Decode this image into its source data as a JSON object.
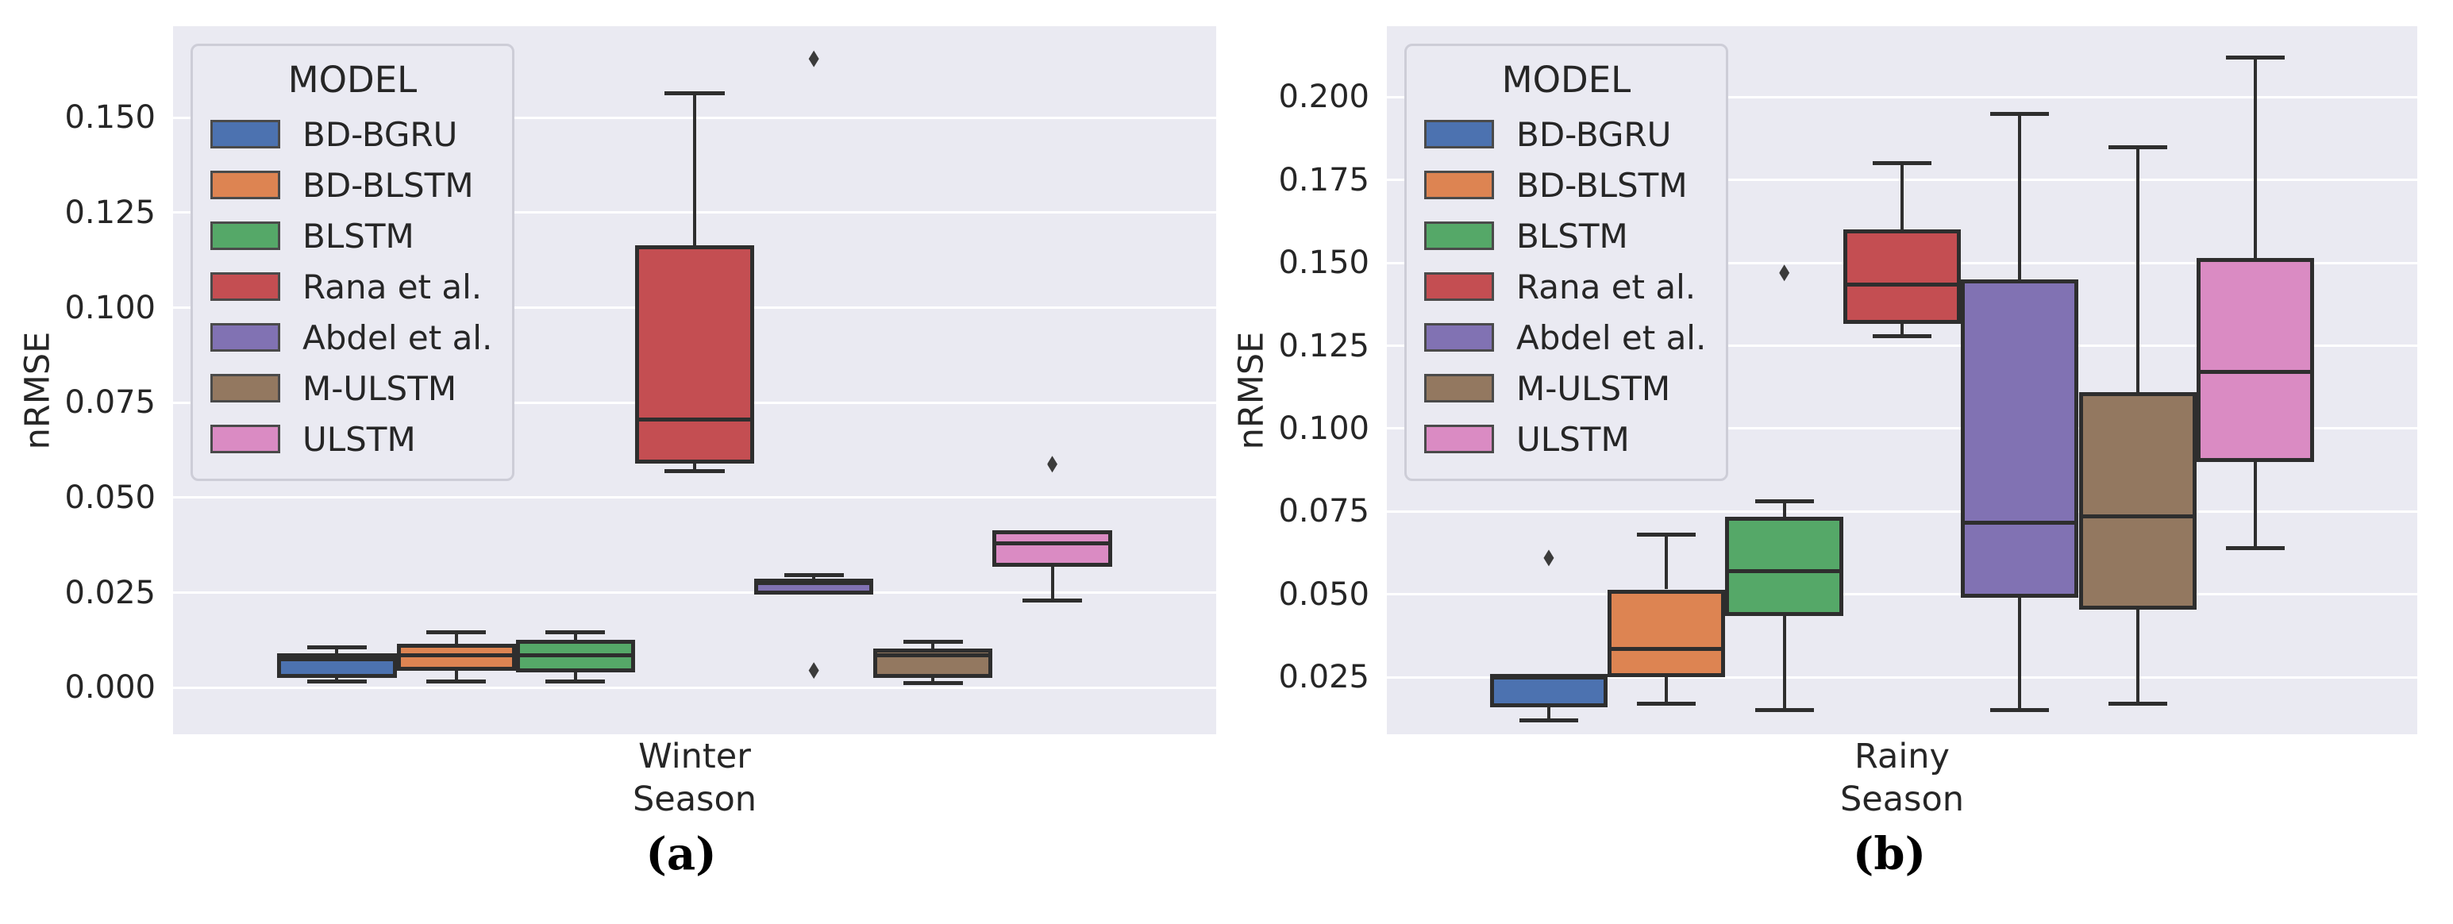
{
  "colors": {
    "background": "#ffffff",
    "axes_background": "#eaeaf2",
    "grid": "#ffffff",
    "box_edge": "#2e2e2e",
    "flier": "#3b3b3b",
    "text": "#262626",
    "legend_border": "#cdcdd7"
  },
  "legend": {
    "title": "MODEL"
  },
  "models": [
    {
      "name": "BD-BGRU",
      "color": "#4c72b0"
    },
    {
      "name": "BD-BLSTM",
      "color": "#dd8452"
    },
    {
      "name": "BLSTM",
      "color": "#55a868"
    },
    {
      "name": "Rana et al.",
      "color": "#c44e52"
    },
    {
      "name": "Abdel et al.",
      "color": "#8172b3"
    },
    {
      "name": "M-ULSTM",
      "color": "#937860"
    },
    {
      "name": "ULSTM",
      "color": "#da8bc3"
    }
  ],
  "chart_data": [
    {
      "type": "boxplot",
      "panel_caption": "(a)",
      "category": "Winter",
      "xlabel": "Season",
      "ylabel": "nRMSE",
      "ylim": [
        -0.0123,
        0.1741
      ],
      "yticks": [
        "0.000",
        "0.025",
        "0.050",
        "0.075",
        "0.100",
        "0.125",
        "0.150"
      ],
      "grid": true,
      "legend_position": "upper left",
      "series": [
        {
          "model": "BD-BGRU",
          "whislo": 0.0015,
          "q1": 0.0025,
          "med": 0.0075,
          "q3": 0.009,
          "whishi": 0.0105,
          "fliers": []
        },
        {
          "model": "BD-BLSTM",
          "whislo": 0.0015,
          "q1": 0.0045,
          "med": 0.0085,
          "q3": 0.0115,
          "whishi": 0.0145,
          "fliers": []
        },
        {
          "model": "BLSTM",
          "whislo": 0.0015,
          "q1": 0.004,
          "med": 0.0085,
          "q3": 0.0125,
          "whishi": 0.0145,
          "fliers": []
        },
        {
          "model": "Rana et al.",
          "whislo": 0.057,
          "q1": 0.059,
          "med": 0.0705,
          "q3": 0.1165,
          "whishi": 0.1565,
          "fliers": []
        },
        {
          "model": "Abdel et al.",
          "whislo": 0.0245,
          "q1": 0.0245,
          "med": 0.0275,
          "q3": 0.0287,
          "whishi": 0.0297,
          "fliers": [
            0.0045,
            0.1655
          ]
        },
        {
          "model": "M-ULSTM",
          "whislo": 0.0012,
          "q1": 0.0025,
          "med": 0.0085,
          "q3": 0.0102,
          "whishi": 0.0121,
          "fliers": []
        },
        {
          "model": "ULSTM",
          "whislo": 0.023,
          "q1": 0.0317,
          "med": 0.038,
          "q3": 0.0415,
          "whishi": 0.0415,
          "fliers": [
            0.0588
          ]
        }
      ]
    },
    {
      "type": "boxplot",
      "panel_caption": "(b)",
      "category": "Rainy",
      "xlabel": "Season",
      "ylabel": "nRMSE",
      "ylim": [
        0.0078,
        0.2214
      ],
      "yticks": [
        "0.025",
        "0.050",
        "0.075",
        "0.100",
        "0.125",
        "0.150",
        "0.175",
        "0.200"
      ],
      "grid": true,
      "legend_position": "upper left",
      "series": [
        {
          "model": "BD-BGRU",
          "whislo": 0.012,
          "q1": 0.016,
          "med": 0.025,
          "q3": 0.026,
          "whishi": 0.026,
          "fliers": [
            0.061
          ]
        },
        {
          "model": "BD-BLSTM",
          "whislo": 0.017,
          "q1": 0.025,
          "med": 0.0335,
          "q3": 0.0515,
          "whishi": 0.068,
          "fliers": []
        },
        {
          "model": "BLSTM",
          "whislo": 0.015,
          "q1": 0.0435,
          "med": 0.057,
          "q3": 0.0735,
          "whishi": 0.078,
          "fliers": [
            0.147
          ]
        },
        {
          "model": "Rana et al.",
          "whislo": 0.128,
          "q1": 0.1315,
          "med": 0.1435,
          "q3": 0.16,
          "whishi": 0.18,
          "fliers": []
        },
        {
          "model": "Abdel et al.",
          "whislo": 0.015,
          "q1": 0.049,
          "med": 0.0715,
          "q3": 0.145,
          "whishi": 0.195,
          "fliers": []
        },
        {
          "model": "M-ULSTM",
          "whislo": 0.017,
          "q1": 0.0455,
          "med": 0.0735,
          "q3": 0.111,
          "whishi": 0.185,
          "fliers": []
        },
        {
          "model": "ULSTM",
          "whislo": 0.064,
          "q1": 0.09,
          "med": 0.117,
          "q3": 0.1515,
          "whishi": 0.212,
          "fliers": []
        }
      ]
    }
  ]
}
